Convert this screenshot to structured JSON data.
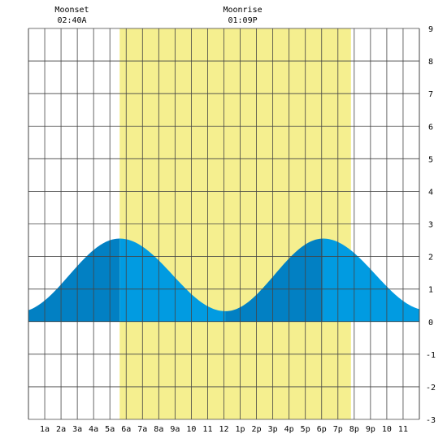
{
  "chart_data": {
    "type": "area",
    "title": "",
    "xlabel": "",
    "ylabel": "",
    "x_range_hours": [
      0,
      24
    ],
    "ylim": [
      -3,
      9
    ],
    "yticks": [
      -3,
      -2,
      -1,
      0,
      1,
      2,
      3,
      4,
      5,
      6,
      7,
      8,
      9
    ],
    "xtick_labels": [
      "1a",
      "2a",
      "3a",
      "4a",
      "5a",
      "6a",
      "7a",
      "8a",
      "9a",
      "10",
      "11",
      "12",
      "1p",
      "2p",
      "3p",
      "4p",
      "5p",
      "6p",
      "7p",
      "8p",
      "9p",
      "10",
      "11"
    ],
    "xtick_hours": [
      1,
      2,
      3,
      4,
      5,
      6,
      7,
      8,
      9,
      10,
      11,
      12,
      13,
      14,
      15,
      16,
      17,
      18,
      19,
      20,
      21,
      22,
      23
    ],
    "grid": true,
    "daylight": {
      "start_hour": 5.6,
      "end_hour": 19.8,
      "color": "#f5ef8f"
    },
    "tide_colors": {
      "rising": "#0280c3",
      "falling": "#019be1"
    },
    "tide_extremes": [
      {
        "hour": -0.6,
        "height": 0.3,
        "kind": "low"
      },
      {
        "hour": 5.6,
        "height": 2.55,
        "kind": "high"
      },
      {
        "hour": 12.1,
        "height": 0.32,
        "kind": "low"
      },
      {
        "hour": 18.1,
        "height": 2.55,
        "kind": "high"
      },
      {
        "hour": 24.5,
        "height": 0.35,
        "kind": "low"
      }
    ],
    "moon_events": [
      {
        "name": "Moonset",
        "time": "02:40A",
        "hour": 2.67
      },
      {
        "name": "Moonrise",
        "time": "01:09P",
        "hour": 13.15
      }
    ]
  }
}
